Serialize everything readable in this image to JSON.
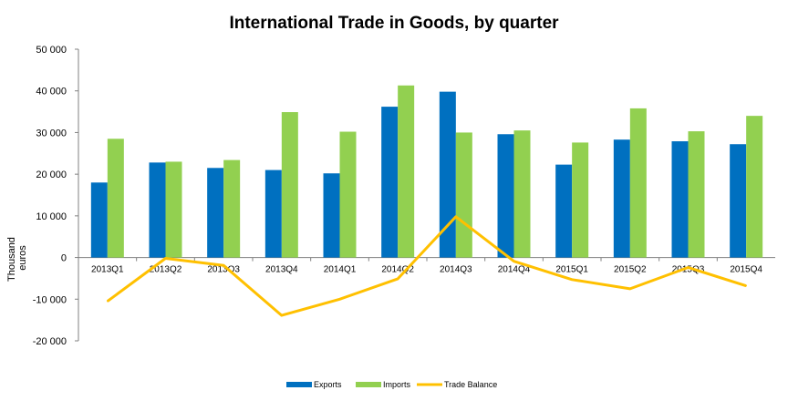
{
  "chart_data": {
    "type": "bar",
    "title": "International Trade in Goods, by quarter",
    "ylabel": "Thousand euros",
    "ylabel_lines": [
      "Thousand",
      "euros"
    ],
    "xlabel": "",
    "categories": [
      "2013Q1",
      "2013Q2",
      "2013Q3",
      "2013Q4",
      "2014Q1",
      "2014Q2",
      "2014Q3",
      "2014Q4",
      "2015Q1",
      "2015Q2",
      "2015Q3",
      "2015Q4"
    ],
    "ylim": [
      -20000,
      50000
    ],
    "yticks": [
      50000,
      40000,
      30000,
      20000,
      10000,
      0,
      -10000,
      -20000
    ],
    "ytick_labels": [
      "50 000",
      "40 000",
      "30 000",
      "20 000",
      "10 000",
      "0",
      "-10 000",
      "-20 000"
    ],
    "grid": false,
    "legend_position": "bottom",
    "series": [
      {
        "name": "Exports",
        "type": "bar",
        "color": "#0070c0",
        "values": [
          18000,
          22800,
          21500,
          21000,
          20200,
          36200,
          39800,
          29600,
          22300,
          28300,
          27900,
          27200
        ]
      },
      {
        "name": "Imports",
        "type": "bar",
        "color": "#92d050",
        "values": [
          28500,
          23000,
          23400,
          34900,
          30200,
          41300,
          30000,
          30500,
          27600,
          35800,
          30300,
          34000
        ]
      },
      {
        "name": "Trade Balance",
        "type": "line",
        "color": "#ffc000",
        "values": [
          -10500,
          -200,
          -1900,
          -13900,
          -10000,
          -5100,
          9800,
          -900,
          -5300,
          -7500,
          -2400,
          -6800
        ]
      }
    ]
  }
}
